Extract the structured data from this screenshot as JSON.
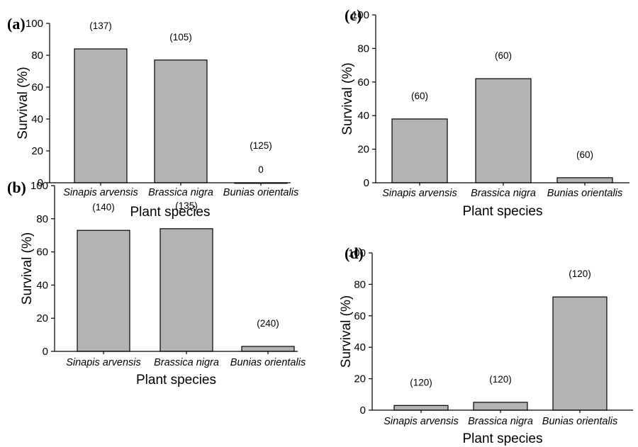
{
  "chart_data": [
    {
      "panel": "(a)",
      "type": "bar",
      "categories": [
        "Sinapis arvensis",
        "Brassica nigra",
        "Bunias orientalis"
      ],
      "values": [
        84,
        77,
        0
      ],
      "data_labels": [
        "(137)",
        "(105)",
        "(125)"
      ],
      "value_annotations": [
        "",
        "",
        "0"
      ],
      "xlabel": "Plant species",
      "ylabel": "Survival (%)",
      "ylim": [
        0,
        100
      ],
      "yticks": [
        "0",
        "20",
        "40",
        "60",
        "80",
        "100"
      ],
      "bar_color": "#b3b3b3",
      "grid": false
    },
    {
      "panel": "(b)",
      "type": "bar",
      "categories": [
        "Sinapis arvensis",
        "Brassica nigra",
        "Bunias orientalis"
      ],
      "values": [
        73,
        74,
        3
      ],
      "data_labels": [
        "(140)",
        "(135)",
        "(240)"
      ],
      "value_annotations": [
        "",
        "",
        ""
      ],
      "xlabel": "Plant species",
      "ylabel": "Survival (%)",
      "ylim": [
        0,
        100
      ],
      "yticks": [
        "0",
        "20",
        "40",
        "60",
        "80",
        "100"
      ],
      "bar_color": "#b3b3b3",
      "grid": false
    },
    {
      "panel": "(c)",
      "type": "bar",
      "categories": [
        "Sinapis arvensis",
        "Brassica nigra",
        "Bunias orientalis"
      ],
      "values": [
        38,
        62,
        3
      ],
      "data_labels": [
        "(60)",
        "(60)",
        "(60)"
      ],
      "value_annotations": [
        "",
        "",
        ""
      ],
      "xlabel": "Plant species",
      "ylabel": "Survival (%)",
      "ylim": [
        0,
        100
      ],
      "yticks": [
        "0",
        "20",
        "40",
        "60",
        "80",
        "100"
      ],
      "bar_color": "#b3b3b3",
      "grid": false
    },
    {
      "panel": "(d)",
      "type": "bar",
      "categories": [
        "Sinapis arvensis",
        "Brassica nigra",
        "Bunias orientalis"
      ],
      "values": [
        3,
        5,
        72
      ],
      "data_labels": [
        "(120)",
        "(120)",
        "(120)"
      ],
      "value_annotations": [
        "",
        "",
        ""
      ],
      "xlabel": "Plant species",
      "ylabel": "Survival (%)",
      "ylim": [
        0,
        100
      ],
      "yticks": [
        "0",
        "20",
        "40",
        "60",
        "80",
        "100"
      ],
      "bar_color": "#b3b3b3",
      "grid": false
    }
  ]
}
